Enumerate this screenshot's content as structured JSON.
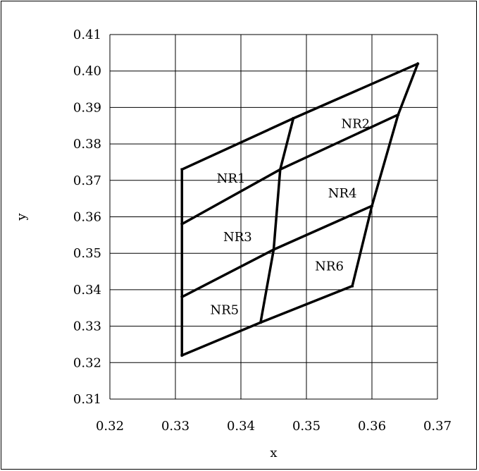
{
  "chart_data": {
    "type": "line",
    "title": "",
    "xlabel": "x",
    "ylabel": "y",
    "xlim": [
      0.32,
      0.37
    ],
    "ylim": [
      0.31,
      0.41
    ],
    "x_ticks": [
      "0.32",
      "0.33",
      "0.34",
      "0.35",
      "0.36",
      "0.37"
    ],
    "y_ticks": [
      "0.31",
      "0.32",
      "0.33",
      "0.34",
      "0.35",
      "0.36",
      "0.37",
      "0.38",
      "0.39",
      "0.40",
      "0.41"
    ],
    "grid": true,
    "series": [
      {
        "values": [
          [
            0.331,
            0.322
          ],
          [
            0.331,
            0.373
          ]
        ]
      },
      {
        "values": [
          [
            0.331,
            0.373
          ],
          [
            0.348,
            0.387
          ],
          [
            0.367,
            0.402
          ]
        ]
      },
      {
        "values": [
          [
            0.367,
            0.402
          ],
          [
            0.364,
            0.388
          ],
          [
            0.36,
            0.363
          ],
          [
            0.357,
            0.341
          ]
        ]
      },
      {
        "values": [
          [
            0.331,
            0.322
          ],
          [
            0.343,
            0.331
          ],
          [
            0.357,
            0.341
          ]
        ]
      },
      {
        "values": [
          [
            0.331,
            0.358
          ],
          [
            0.346,
            0.373
          ],
          [
            0.364,
            0.388
          ]
        ]
      },
      {
        "values": [
          [
            0.331,
            0.338
          ],
          [
            0.345,
            0.351
          ],
          [
            0.36,
            0.363
          ]
        ]
      },
      {
        "values": [
          [
            0.348,
            0.387
          ],
          [
            0.346,
            0.373
          ],
          [
            0.345,
            0.351
          ],
          [
            0.343,
            0.331
          ]
        ]
      }
    ],
    "annotations": [
      {
        "text": "NR1",
        "x": 0.3385,
        "y": 0.3705
      },
      {
        "text": "NR2",
        "x": 0.3575,
        "y": 0.3855
      },
      {
        "text": "NR3",
        "x": 0.3395,
        "y": 0.3545
      },
      {
        "text": "NR4",
        "x": 0.3555,
        "y": 0.3665
      },
      {
        "text": "NR5",
        "x": 0.3375,
        "y": 0.3345
      },
      {
        "text": "NR6",
        "x": 0.3535,
        "y": 0.3465
      }
    ]
  },
  "colors": {
    "line": "#000000",
    "grid": "#000000",
    "background": "#ffffff"
  }
}
